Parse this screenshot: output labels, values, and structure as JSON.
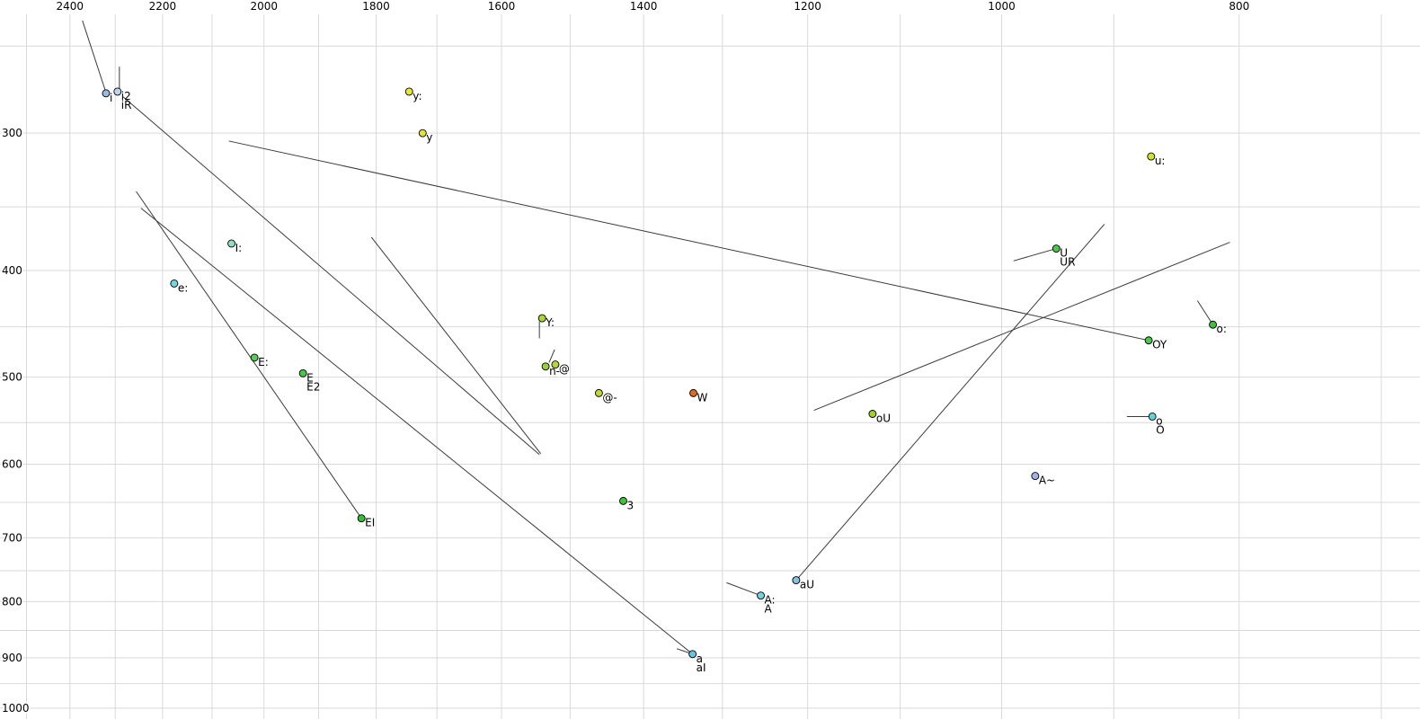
{
  "chart_data": {
    "type": "scatter",
    "title": "",
    "description": "Vowel formant chart (F2 horizontal, reversed log scale; F1 vertical, log scale) with vowel tokens and diphthong trajectory lines",
    "grid": {
      "show": true,
      "color": "#d9d9d9",
      "x_minor": {
        "start": 2500,
        "end": 700,
        "step": 100
      },
      "y_minor": {
        "start": 250,
        "end": 1000,
        "step": 50
      }
    },
    "x_axis": {
      "scale": "log",
      "reversed": true,
      "range": [
        2563,
        675
      ],
      "ticks": [
        2400,
        2200,
        2000,
        1800,
        1600,
        1400,
        1200,
        1000,
        800
      ]
    },
    "y_axis": {
      "scale": "log",
      "range": [
        227,
        1023
      ],
      "ticks": [
        300,
        400,
        500,
        600,
        700,
        800,
        900,
        1000
      ]
    },
    "line_color": "#3a3a3a",
    "marker_stroke": "#000000",
    "points": [
      {
        "id": "i",
        "f2": 2320,
        "f1": 276,
        "color": "#9cb8e2",
        "labels": [
          "i"
        ]
      },
      {
        "id": "i2",
        "f2": 2295,
        "f1": 275,
        "color": "#bdd4ec",
        "labels": [
          "i2",
          "iR"
        ]
      },
      {
        "id": "y-long",
        "f2": 1745,
        "f1": 275,
        "color": "#e6e63a",
        "labels": [
          "y:"
        ]
      },
      {
        "id": "y",
        "f2": 1723,
        "f1": 300,
        "color": "#e2e23c",
        "labels": [
          "y"
        ]
      },
      {
        "id": "u-long",
        "f2": 869,
        "f1": 315,
        "color": "#cfe32e",
        "labels": [
          "u:"
        ]
      },
      {
        "id": "I-long",
        "f2": 2062,
        "f1": 378,
        "color": "#8fe0bf",
        "labels": [
          "I:"
        ]
      },
      {
        "id": "e-long",
        "f2": 2176,
        "f1": 411,
        "color": "#76d4df",
        "labels": [
          "e:"
        ]
      },
      {
        "id": "U",
        "f2": 950,
        "f1": 382,
        "color": "#4ec44e",
        "labels": [
          "U",
          "UR"
        ]
      },
      {
        "id": "o-long",
        "f2": 820,
        "f1": 448,
        "color": "#3fc13f",
        "labels": [
          "o:"
        ]
      },
      {
        "id": "OY",
        "f2": 871,
        "f1": 463,
        "color": "#4ac84a",
        "labels": [
          "OY"
        ]
      },
      {
        "id": "Y-long",
        "f2": 1540,
        "f1": 442,
        "color": "#aad830",
        "labels": [
          "Y:"
        ]
      },
      {
        "id": "schwa",
        "f2": 1521,
        "f1": 487,
        "color": "#b2d838",
        "labels": [
          "@"
        ]
      },
      {
        "id": "n-",
        "f2": 1535,
        "f1": 489,
        "color": "#96d03e",
        "labels": [
          "n-"
        ]
      },
      {
        "id": "schwa-r",
        "f2": 1460,
        "f1": 517,
        "color": "#c2d830",
        "labels": [
          "@-"
        ]
      },
      {
        "id": "W",
        "f2": 1336,
        "f1": 517,
        "color": "#e06a1e",
        "labels": [
          "W"
        ]
      },
      {
        "id": "E-long",
        "f2": 2018,
        "f1": 480,
        "color": "#58cc58",
        "labels": [
          "E:"
        ]
      },
      {
        "id": "E",
        "f2": 1928,
        "f1": 496,
        "color": "#48c848",
        "labels": [
          "E",
          "E2"
        ]
      },
      {
        "id": "EI",
        "f2": 1825,
        "f1": 672,
        "color": "#30c030",
        "labels": [
          "EI"
        ]
      },
      {
        "id": "3",
        "f2": 1427,
        "f1": 648,
        "color": "#38c838",
        "labels": [
          "3"
        ]
      },
      {
        "id": "oU",
        "f2": 1129,
        "f1": 540,
        "color": "#a2d02e",
        "labels": [
          "oU"
        ]
      },
      {
        "id": "o",
        "f2": 868,
        "f1": 543,
        "color": "#62d0d8",
        "labels": [
          "o",
          "O"
        ]
      },
      {
        "id": "A-nasal",
        "f2": 969,
        "f1": 615,
        "color": "#a2b2e8",
        "labels": [
          "A~"
        ]
      },
      {
        "id": "aU",
        "f2": 1213,
        "f1": 765,
        "color": "#88c0e0",
        "labels": [
          "aU"
        ]
      },
      {
        "id": "A-long",
        "f2": 1254,
        "f1": 790,
        "color": "#72d0e0",
        "labels": [
          "A:",
          "A"
        ]
      },
      {
        "id": "a",
        "f2": 1337,
        "f1": 893,
        "color": "#6ac2e2",
        "labels": [
          "a",
          "aI"
        ]
      }
    ],
    "lines": [
      {
        "name": "i-tail",
        "from": [
          2372,
          237
        ],
        "to": [
          2322,
          274
        ]
      },
      {
        "name": "i2-tail",
        "from": [
          2291,
          261
        ],
        "to": [
          2291,
          275
        ]
      },
      {
        "name": "iR-trajectory",
        "from": [
          2283,
          278
        ],
        "to": [
          1544,
          588
        ]
      },
      {
        "name": "EI-trajectory",
        "from": [
          2255,
          339
        ],
        "to": [
          1825,
          672
        ]
      },
      {
        "name": "aI-trajectory",
        "from": [
          2245,
          351
        ],
        "to": [
          1337,
          893
        ]
      },
      {
        "name": "mid-trajectory",
        "from": [
          1808,
          373
        ],
        "to": [
          1542,
          587
        ]
      },
      {
        "name": "OY-trajectory",
        "from": [
          2067,
          305
        ],
        "to": [
          871,
          463
        ]
      },
      {
        "name": "aU-trajectory",
        "from": [
          1213,
          765
        ],
        "to": [
          908,
          363
        ]
      },
      {
        "name": "right-cross-trajectory",
        "from": [
          1193,
          536
        ],
        "to": [
          807,
          377
        ]
      },
      {
        "name": "Y-tail",
        "from": [
          1544,
          445
        ],
        "to": [
          1544,
          461
        ]
      },
      {
        "name": "schwa-tail",
        "from": [
          1522,
          472
        ],
        "to": [
          1530,
          485
        ]
      },
      {
        "name": "U-tail",
        "from": [
          989,
          392
        ],
        "to": [
          950,
          382
        ]
      },
      {
        "name": "o-long-tail",
        "from": [
          832,
          426
        ],
        "to": [
          820,
          448
        ]
      },
      {
        "name": "o-tail",
        "from": [
          889,
          543
        ],
        "to": [
          871,
          543
        ]
      },
      {
        "name": "A-long-tail",
        "from": [
          1295,
          769
        ],
        "to": [
          1254,
          790
        ]
      },
      {
        "name": "aI-tail",
        "from": [
          1357,
          883
        ],
        "to": [
          1337,
          893
        ]
      }
    ]
  }
}
